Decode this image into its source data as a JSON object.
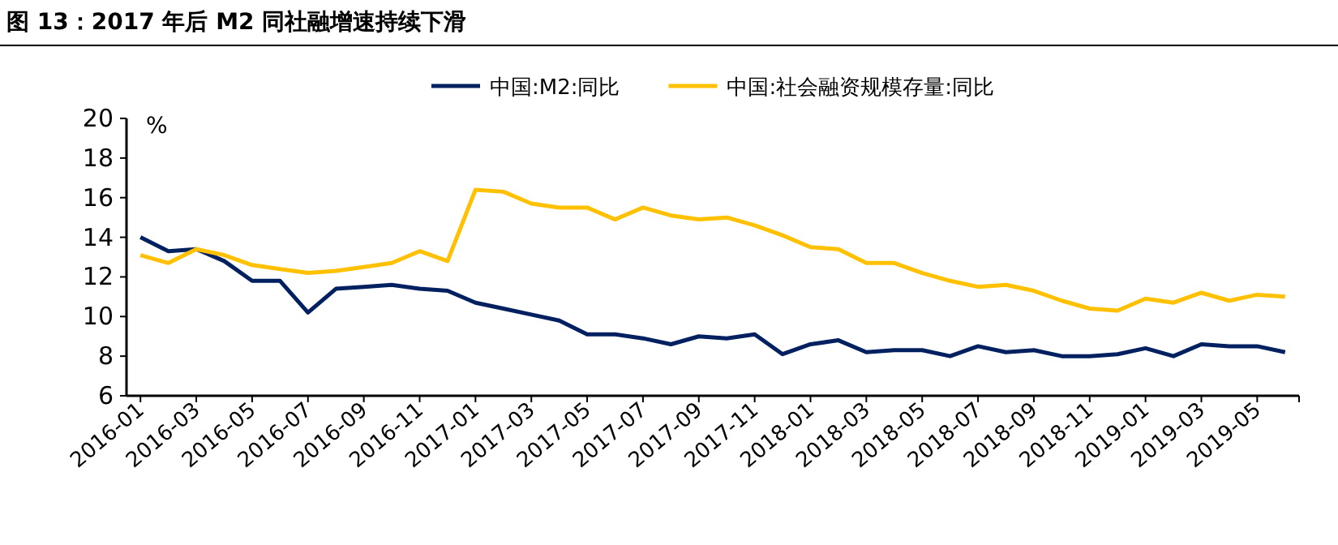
{
  "chart_data": {
    "type": "line",
    "title": "图 13：2017 年后 M2 同社融增速持续下滑",
    "ylabel": "%",
    "categories": [
      "2016-01",
      null,
      "2016-03",
      null,
      "2016-05",
      null,
      "2016-07",
      null,
      "2016-09",
      null,
      "2016-11",
      null,
      "2017-01",
      null,
      "2017-03",
      null,
      "2017-05",
      null,
      "2017-07",
      null,
      "2017-09",
      null,
      "2017-11",
      null,
      "2018-01",
      null,
      "2018-03",
      null,
      "2018-05",
      null,
      "2018-07",
      null,
      "2018-09",
      null,
      "2018-11",
      null,
      "2019-01",
      null,
      "2019-03",
      null,
      "2019-05",
      null
    ],
    "series": [
      {
        "name": "中国:M2:同比",
        "color": "#002060",
        "values": [
          14.0,
          13.3,
          13.4,
          12.8,
          11.8,
          11.8,
          10.2,
          11.4,
          11.5,
          11.6,
          11.4,
          11.3,
          10.7,
          10.4,
          10.1,
          9.8,
          9.1,
          9.1,
          8.9,
          8.6,
          9.0,
          8.9,
          9.1,
          8.1,
          8.6,
          8.8,
          8.2,
          8.3,
          8.3,
          8.0,
          8.5,
          8.2,
          8.3,
          8.0,
          8.0,
          8.1,
          8.4,
          8.0,
          8.6,
          8.5,
          8.5,
          8.2
        ]
      },
      {
        "name": "中国:社会融资规模存量:同比",
        "color": "#ffc000",
        "values": [
          13.1,
          12.7,
          13.4,
          13.1,
          12.6,
          12.4,
          12.2,
          12.3,
          12.5,
          12.7,
          13.3,
          12.8,
          16.4,
          16.3,
          15.7,
          15.5,
          15.5,
          14.9,
          15.5,
          15.1,
          14.9,
          15.0,
          14.6,
          14.1,
          13.5,
          13.4,
          12.7,
          12.7,
          12.2,
          11.8,
          11.5,
          11.6,
          11.3,
          10.8,
          10.4,
          10.3,
          10.9,
          10.7,
          11.2,
          10.8,
          11.1,
          11.0
        ]
      }
    ],
    "ylim": [
      6,
      20
    ],
    "yticks": [
      6,
      8,
      10,
      12,
      14,
      16,
      18,
      20
    ],
    "grid": false,
    "legend": "top",
    "marker": "none",
    "line_style": "solid"
  }
}
